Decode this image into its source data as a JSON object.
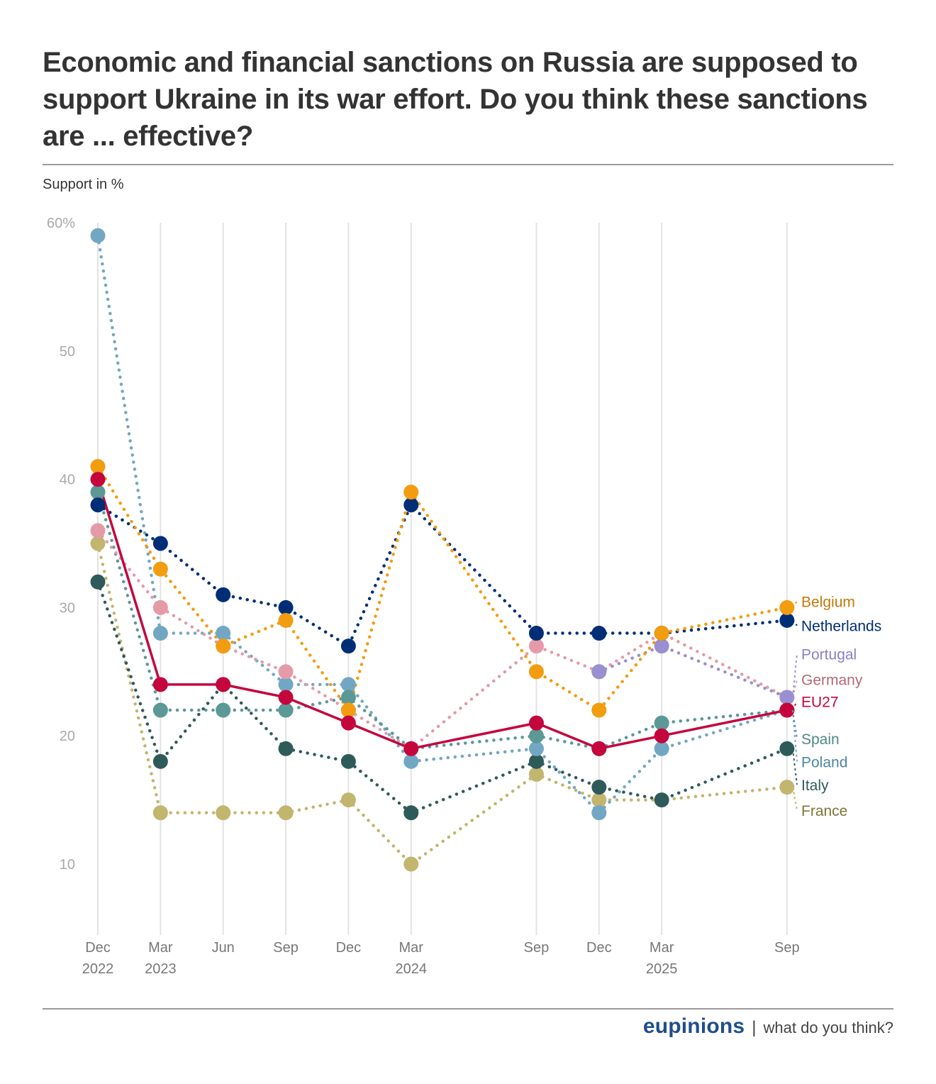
{
  "header": {
    "title": "Economic and financial sanctions on Russia are supposed to support Ukraine in its war effort. Do you think these sanctions are ... effective?",
    "subtitle": "Support in %"
  },
  "footer": {
    "brand": "eupinions",
    "separator": "|",
    "tagline": "what do you think?"
  },
  "chart_data": {
    "type": "line",
    "title": "Economic and financial sanctions on Russia are supposed to support Ukraine in its war effort. Do you think these sanctions are ... effective?",
    "ylabel": "Support in %",
    "xlabel": "",
    "ylim": [
      5,
      60
    ],
    "yticks": [
      10,
      20,
      30,
      40,
      50,
      60
    ],
    "ytick_labels": [
      "10",
      "20",
      "30",
      "40",
      "50",
      "60%"
    ],
    "grid": "vertical",
    "legend": "direct labels right",
    "x": [
      {
        "month": "Dec",
        "year": "2022",
        "index": 0
      },
      {
        "month": "Mar",
        "year": "2023",
        "index": 3
      },
      {
        "month": "Jun",
        "year": "",
        "index": 6
      },
      {
        "month": "Sep",
        "year": "",
        "index": 9
      },
      {
        "month": "Dec",
        "year": "",
        "index": 12
      },
      {
        "month": "Mar",
        "year": "2024",
        "index": 15
      },
      {
        "month": "Sep",
        "year": "",
        "index": 21
      },
      {
        "month": "Dec",
        "year": "",
        "index": 24
      },
      {
        "month": "Mar",
        "year": "2025",
        "index": 27
      },
      {
        "month": "Sep",
        "year": "",
        "index": 33
      }
    ],
    "series": [
      {
        "name": "France",
        "color": "#c2b56e",
        "label_color": "#7f7538",
        "dash": true,
        "label_value": 14.2,
        "values": [
          35,
          14,
          14,
          14,
          15,
          10,
          17,
          15,
          15,
          16
        ]
      },
      {
        "name": "Italy",
        "color": "#2e5b59",
        "label_color": "#2e5b59",
        "dash": true,
        "label_value": 16.2,
        "values": [
          32,
          18,
          24,
          19,
          18,
          14,
          18,
          16,
          15,
          19
        ]
      },
      {
        "name": "Poland",
        "color": "#72a7c4",
        "label_color": "#4f86a6",
        "dash": true,
        "label_value": 18.0,
        "values": [
          59,
          28,
          28,
          24,
          24,
          18,
          19,
          14,
          19,
          22
        ]
      },
      {
        "name": "Spain",
        "color": "#5b9896",
        "label_color": "#4e8886",
        "dash": true,
        "label_value": 19.8,
        "values": [
          39,
          22,
          22,
          22,
          23,
          19,
          20,
          19,
          21,
          22
        ]
      },
      {
        "name": "Germany",
        "color": "#e59aa8",
        "label_color": "#b3697a",
        "dash": true,
        "label_value": 24.4,
        "values": [
          36,
          30,
          27,
          25,
          22,
          19,
          27,
          25,
          28,
          23
        ]
      },
      {
        "name": "Portugal",
        "color": "#9a8fd0",
        "label_color": "#8b80c5",
        "dash": true,
        "label_value": 26.4,
        "values": [
          null,
          null,
          null,
          null,
          null,
          null,
          null,
          25,
          27,
          23
        ]
      },
      {
        "name": "Netherlands",
        "color": "#002e76",
        "label_color": "#002e76",
        "dash": true,
        "label_value": 28.6,
        "values": [
          38,
          35,
          31,
          30,
          27,
          38,
          28,
          28,
          28,
          29
        ]
      },
      {
        "name": "Belgium",
        "color": "#f29c0f",
        "label_color": "#c7780a",
        "dash": true,
        "label_value": 30.5,
        "values": [
          41,
          33,
          27,
          29,
          22,
          39,
          25,
          22,
          28,
          30
        ]
      },
      {
        "name": "EU27",
        "color": "#c4063d",
        "label_color": "#c4063d",
        "dash": false,
        "label_value": 22.7,
        "values": [
          40,
          24,
          24,
          23,
          21,
          19,
          21,
          19,
          20,
          22
        ]
      }
    ]
  }
}
